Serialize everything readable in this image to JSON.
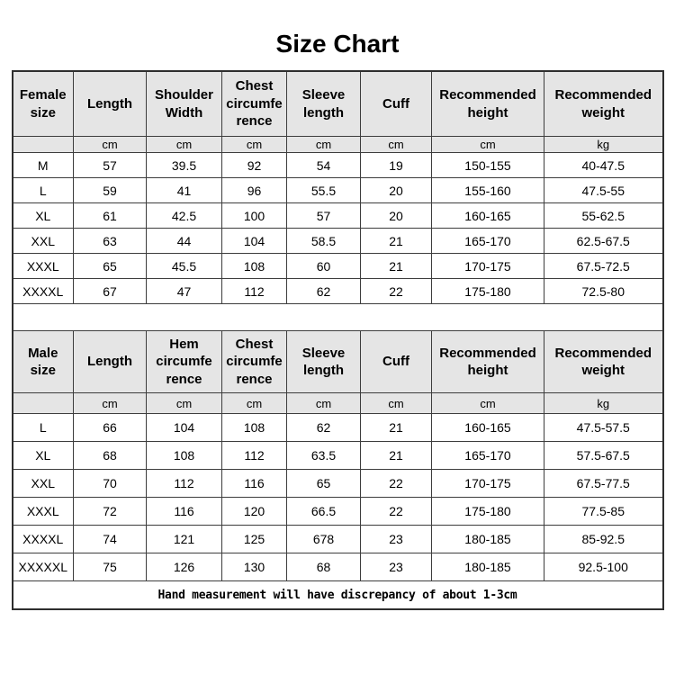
{
  "title": "Size Chart",
  "footer_note": "Hand measurement will have discrepancy of about 1-3cm",
  "colors": {
    "header_background": "#e5e5e5",
    "border": "#3d3d3d",
    "text": "#000000"
  },
  "female_table": {
    "headers": [
      "Female size",
      "Length",
      "Shoulder Width",
      "Chest circumfe rence",
      "Sleeve length",
      "Cuff",
      "Recommended height",
      "Recommended weight"
    ],
    "units": [
      "",
      "cm",
      "cm",
      "cm",
      "cm",
      "cm",
      "cm",
      "kg"
    ],
    "rows": [
      [
        "M",
        "57",
        "39.5",
        "92",
        "54",
        "19",
        "150-155",
        "40-47.5"
      ],
      [
        "L",
        "59",
        "41",
        "96",
        "55.5",
        "20",
        "155-160",
        "47.5-55"
      ],
      [
        "XL",
        "61",
        "42.5",
        "100",
        "57",
        "20",
        "160-165",
        "55-62.5"
      ],
      [
        "XXL",
        "63",
        "44",
        "104",
        "58.5",
        "21",
        "165-170",
        "62.5-67.5"
      ],
      [
        "XXXL",
        "65",
        "45.5",
        "108",
        "60",
        "21",
        "170-175",
        "67.5-72.5"
      ],
      [
        "XXXXL",
        "67",
        "47",
        "112",
        "62",
        "22",
        "175-180",
        "72.5-80"
      ]
    ]
  },
  "male_table": {
    "headers": [
      "Male size",
      "Length",
      "Hem circumfe rence",
      "Chest circumfe rence",
      "Sleeve length",
      "Cuff",
      "Recommended height",
      "Recommended weight"
    ],
    "units": [
      "",
      "cm",
      "cm",
      "cm",
      "cm",
      "cm",
      "cm",
      "kg"
    ],
    "rows": [
      [
        "L",
        "66",
        "104",
        "108",
        "62",
        "21",
        "160-165",
        "47.5-57.5"
      ],
      [
        "XL",
        "68",
        "108",
        "112",
        "63.5",
        "21",
        "165-170",
        "57.5-67.5"
      ],
      [
        "XXL",
        "70",
        "112",
        "116",
        "65",
        "22",
        "170-175",
        "67.5-77.5"
      ],
      [
        "XXXL",
        "72",
        "116",
        "120",
        "66.5",
        "22",
        "175-180",
        "77.5-85"
      ],
      [
        "XXXXL",
        "74",
        "121",
        "125",
        "678",
        "23",
        "180-185",
        "85-92.5"
      ],
      [
        "XXXXXL",
        "75",
        "126",
        "130",
        "68",
        "23",
        "180-185",
        "92.5-100"
      ]
    ]
  }
}
